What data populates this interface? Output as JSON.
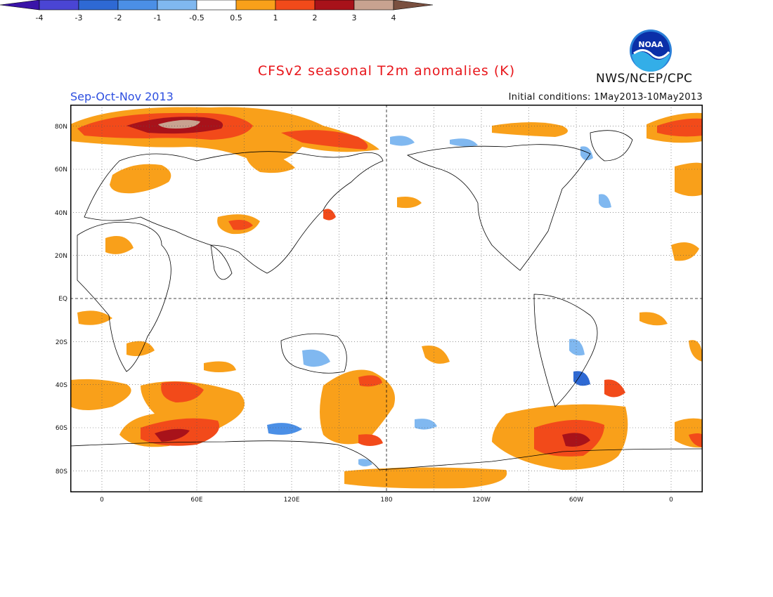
{
  "header": {
    "title": "CFSv2 seasonal T2m anomalies (K)",
    "season": "Sep-Oct-Nov 2013",
    "initial_conditions": "Initial conditions: 1May2013-10May2013",
    "agency": "NWS/NCEP/CPC",
    "logo_text": "NOAA"
  },
  "map": {
    "lat_labels": [
      "80N",
      "60N",
      "40N",
      "20N",
      "EQ",
      "20S",
      "40S",
      "60S",
      "80S"
    ],
    "lon_labels": [
      "0",
      "60E",
      "120E",
      "180",
      "120W",
      "60W",
      "0"
    ],
    "projection": "cylindrical",
    "lat_range": [
      -90,
      90
    ],
    "lon_range": [
      -20,
      380
    ],
    "grid": "dotted every 20 deg lat / 30 deg lon"
  },
  "colorbar": {
    "labels": [
      "-4",
      "-3",
      "-2",
      "-1",
      "-0.5",
      "0.5",
      "1",
      "2",
      "3",
      "4"
    ],
    "colors": [
      "#3a14a8",
      "#4a45d4",
      "#2e69d4",
      "#4b8fe6",
      "#80b8f0",
      "#ffffff",
      "#f9a01a",
      "#f24a1a",
      "#a8121a",
      "#c8a290",
      "#7a5040"
    ]
  }
}
